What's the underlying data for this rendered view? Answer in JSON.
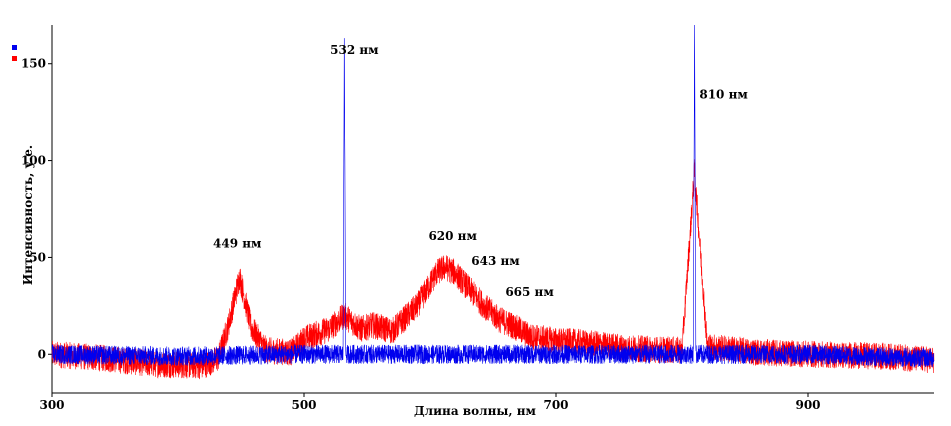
{
  "chart_data": {
    "type": "line",
    "title": "",
    "xlabel": "Длина волны, нм",
    "ylabel": "Интенсивность, у.е.",
    "xlim": [
      300,
      1000
    ],
    "ylim": [
      -20,
      170
    ],
    "x_ticks": [
      300,
      500,
      700,
      900
    ],
    "y_ticks": [
      0,
      50,
      100,
      150
    ],
    "grid": false,
    "legend": {
      "placement": "top-left",
      "entries": [
        "",
        ""
      ]
    },
    "series": [
      {
        "color": "#ff0000",
        "noise_amplitude": 7,
        "x": [
          300,
          340,
          380,
          420,
          432,
          440,
          449,
          458,
          470,
          490,
          500,
          520,
          532,
          545,
          555,
          570,
          590,
          605,
          612,
          620,
          632,
          643,
          655,
          665,
          680,
          700,
          720,
          760,
          800,
          810,
          820,
          860,
          900,
          960,
          1000
        ],
        "y": [
          0,
          -2,
          -5,
          -6,
          -2,
          15,
          40,
          14,
          2,
          1,
          8,
          13,
          20,
          13,
          15,
          12,
          25,
          42,
          45,
          42,
          33,
          25,
          18,
          15,
          9,
          7,
          6,
          3,
          2,
          95,
          4,
          1,
          0,
          -1,
          -3
        ]
      },
      {
        "color": "#0000ee",
        "noise_amplitude": 5,
        "x": [
          300,
          400,
          500,
          531,
          532,
          533,
          600,
          700,
          809,
          810,
          811,
          900,
          1000
        ],
        "y": [
          0,
          -1,
          0,
          0,
          170,
          0,
          0,
          0,
          0,
          170,
          0,
          0,
          -2
        ]
      }
    ],
    "annotations": [
      {
        "text": "449 нм",
        "x": 447,
        "y": 55
      },
      {
        "text": "532 нм",
        "x": 540,
        "y": 155
      },
      {
        "text": "620 нм",
        "x": 618,
        "y": 59
      },
      {
        "text": "643 нм",
        "x": 652,
        "y": 46
      },
      {
        "text": "665 нм",
        "x": 679,
        "y": 30
      },
      {
        "text": "810 нм",
        "x": 833,
        "y": 132
      }
    ]
  }
}
